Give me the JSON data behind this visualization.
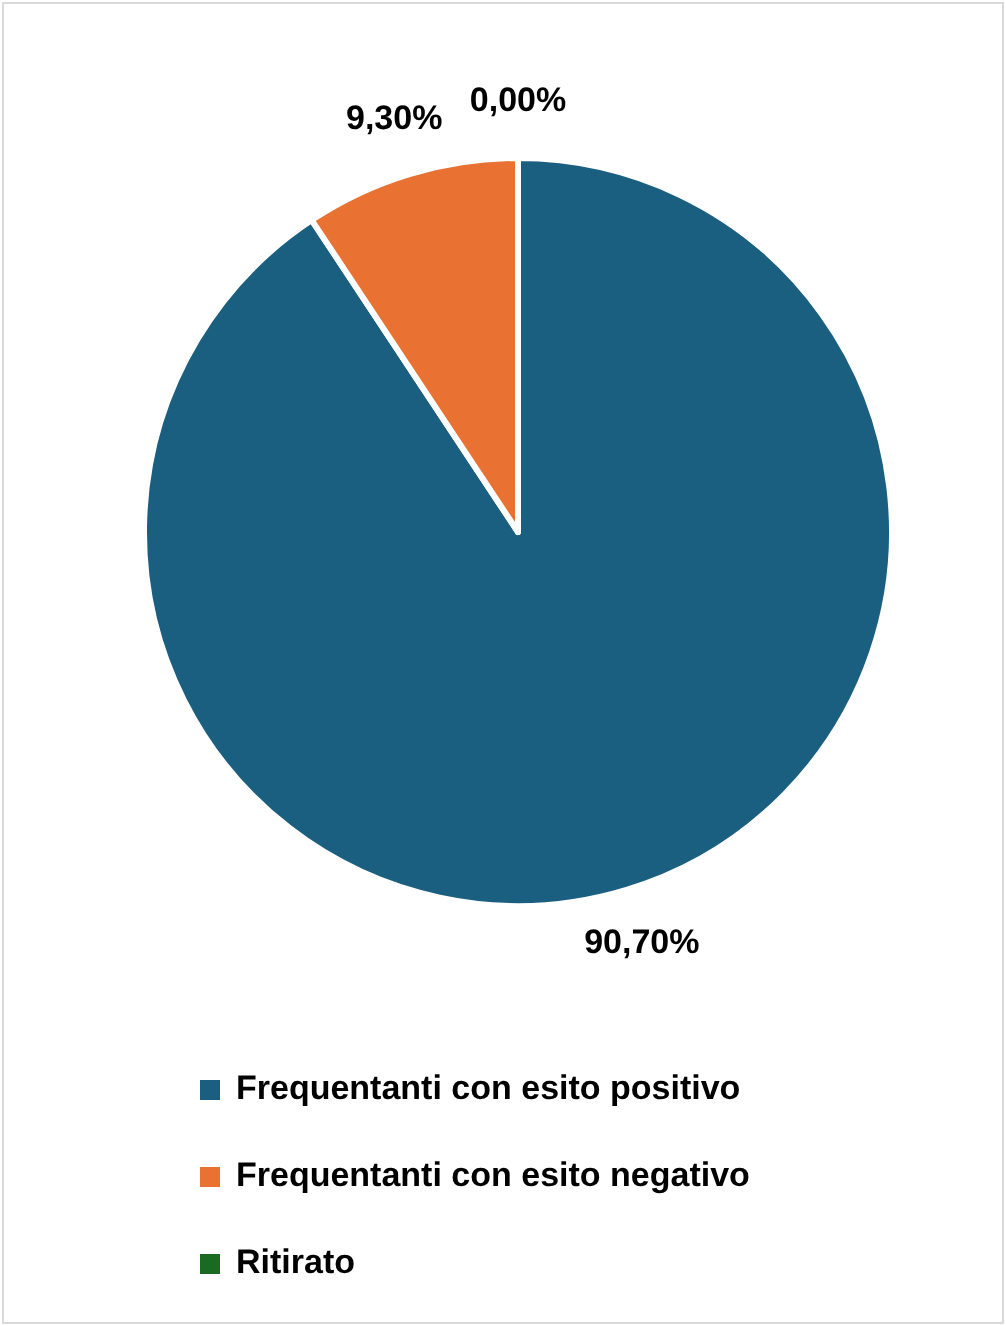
{
  "chart_data": {
    "type": "pie",
    "categories": [
      "Frequentanti con esito positivo",
      "Frequentanti con esito negativo",
      "Ritirato"
    ],
    "values": [
      90.7,
      9.3,
      0
    ],
    "colors": [
      "#1a5e80",
      "#e97132",
      "#196b24"
    ],
    "value_labels": [
      "90,70%",
      "9,30%",
      "0,00%"
    ],
    "legend": "bottom"
  }
}
